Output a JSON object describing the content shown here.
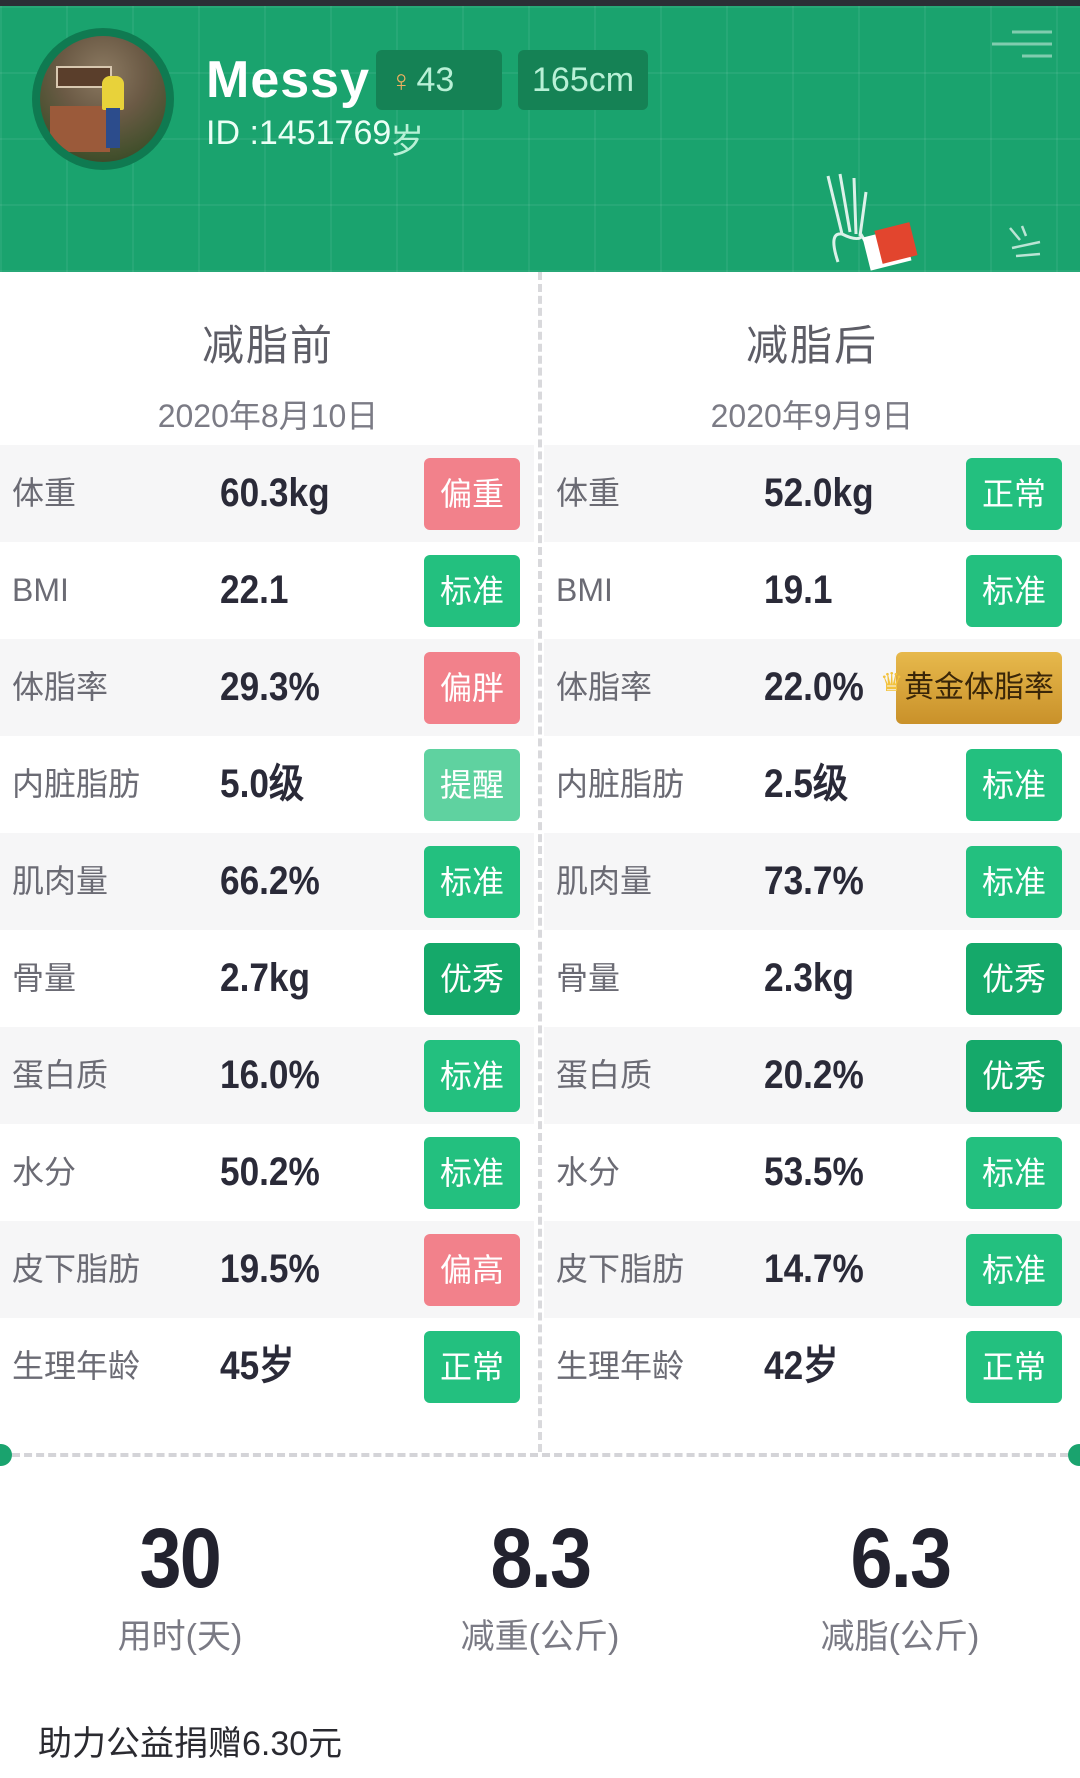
{
  "colors": {
    "header_green": "#1aa36e",
    "badge_green": "#23c07f",
    "badge_pink": "#f2818b",
    "badge_light_green": "#5fd2a0",
    "badge_dark_green": "#15a96a",
    "badge_gold": "#d9a53c"
  },
  "profile": {
    "name": "Messy",
    "id_text": "ID :1451769",
    "gender_icon": "female-icon",
    "age": "43岁",
    "height": "165cm"
  },
  "before": {
    "title": "减脂前",
    "date": "2020年8月10日",
    "rows": [
      {
        "label": "体重",
        "value": "60.3kg",
        "status": "偏重",
        "color": "pink"
      },
      {
        "label": "BMI",
        "value": "22.1",
        "status": "标准",
        "color": "green"
      },
      {
        "label": "体脂率",
        "value": "29.3%",
        "status": "偏胖",
        "color": "pink"
      },
      {
        "label": "内脏脂肪",
        "value": "5.0级",
        "status": "提醒",
        "color": "lightgreen"
      },
      {
        "label": "肌肉量",
        "value": "66.2%",
        "status": "标准",
        "color": "green"
      },
      {
        "label": "骨量",
        "value": "2.7kg",
        "status": "优秀",
        "color": "darkgreen"
      },
      {
        "label": "蛋白质",
        "value": "16.0%",
        "status": "标准",
        "color": "green"
      },
      {
        "label": "水分",
        "value": "50.2%",
        "status": "标准",
        "color": "green"
      },
      {
        "label": "皮下脂肪",
        "value": "19.5%",
        "status": "偏高",
        "color": "pink"
      },
      {
        "label": "生理年龄",
        "value": "45岁",
        "status": "正常",
        "color": "green"
      }
    ]
  },
  "after": {
    "title": "减脂后",
    "date": "2020年9月9日",
    "rows": [
      {
        "label": "体重",
        "value": "52.0kg",
        "status": "正常",
        "color": "green"
      },
      {
        "label": "BMI",
        "value": "19.1",
        "status": "标准",
        "color": "green"
      },
      {
        "label": "体脂率",
        "value": "22.0%",
        "status": "黄金体脂率",
        "color": "gold"
      },
      {
        "label": "内脏脂肪",
        "value": "2.5级",
        "status": "标准",
        "color": "green"
      },
      {
        "label": "肌肉量",
        "value": "73.7%",
        "status": "标准",
        "color": "green"
      },
      {
        "label": "骨量",
        "value": "2.3kg",
        "status": "优秀",
        "color": "darkgreen"
      },
      {
        "label": "蛋白质",
        "value": "20.2%",
        "status": "优秀",
        "color": "darkgreen"
      },
      {
        "label": "水分",
        "value": "53.5%",
        "status": "标准",
        "color": "green"
      },
      {
        "label": "皮下脂肪",
        "value": "14.7%",
        "status": "标准",
        "color": "green"
      },
      {
        "label": "生理年龄",
        "value": "42岁",
        "status": "正常",
        "color": "green"
      }
    ]
  },
  "summary": [
    {
      "value": "30",
      "label": "用时(天)"
    },
    {
      "value": "8.3",
      "label": "减重(公斤)"
    },
    {
      "value": "6.3",
      "label": "减脂(公斤)"
    }
  ],
  "footer": {
    "donation_text": "助力公益捐赠6.30元"
  }
}
